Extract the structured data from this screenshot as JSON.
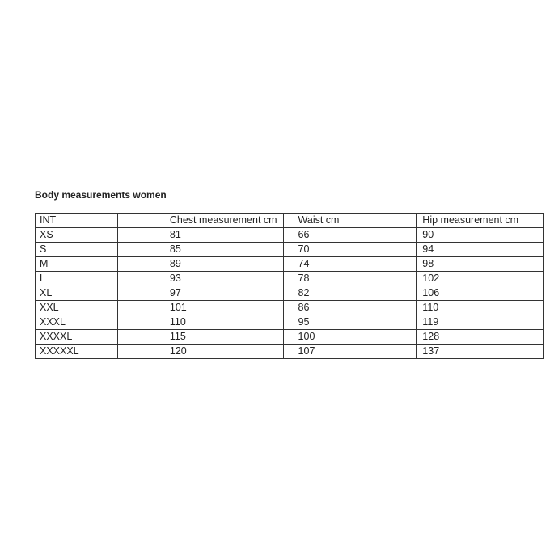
{
  "title": "Body measurements women",
  "table": {
    "headers": [
      "INT",
      "Chest measurement cm",
      "Waist cm",
      "Hip measurement cm"
    ],
    "rows": [
      [
        "XS",
        "81",
        "66",
        "90"
      ],
      [
        "S",
        "85",
        "70",
        "94"
      ],
      [
        "M",
        "89",
        "74",
        "98"
      ],
      [
        "L",
        "93",
        "78",
        "102"
      ],
      [
        "XL",
        "97",
        "82",
        "106"
      ],
      [
        "XXL",
        "101",
        "86",
        "110"
      ],
      [
        "XXXL",
        "110",
        "95",
        "119"
      ],
      [
        "XXXXL",
        "115",
        "100",
        "128"
      ],
      [
        "XXXXXL",
        "120",
        "107",
        "137"
      ]
    ]
  }
}
